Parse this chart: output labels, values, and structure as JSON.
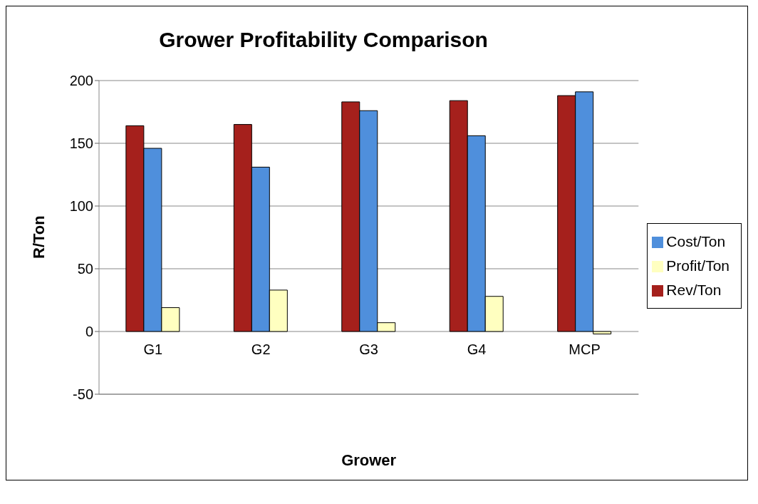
{
  "chart_data": {
    "type": "bar",
    "title": "Grower Profitability Comparison",
    "xlabel": "Grower",
    "ylabel": "R/Ton",
    "categories": [
      "G1",
      "G2",
      "G3",
      "G4",
      "MCP"
    ],
    "series": [
      {
        "name": "Rev/Ton",
        "color": "#a5201c",
        "values": [
          164,
          165,
          183,
          184,
          188
        ]
      },
      {
        "name": "Cost/Ton",
        "color": "#4f8fdc",
        "values": [
          146,
          131,
          176,
          156,
          191
        ]
      },
      {
        "name": "Profit/Ton",
        "color": "#ffffc0",
        "values": [
          19,
          33,
          7,
          28,
          -2
        ]
      }
    ],
    "ylim": [
      -50,
      200
    ],
    "yticks": [
      -50,
      0,
      50,
      100,
      150,
      200
    ],
    "grid": "y",
    "legend": "right"
  }
}
